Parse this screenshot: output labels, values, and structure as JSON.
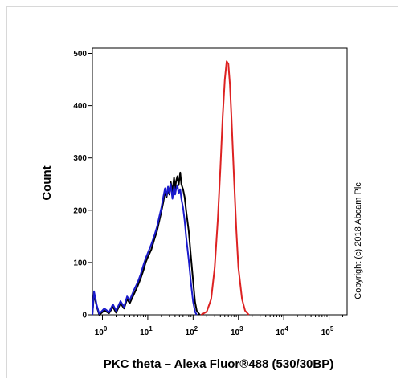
{
  "chart_data": {
    "type": "line",
    "title": "",
    "xlabel": "PKC theta – Alexa Fluor®488 (530/30BP)",
    "ylabel": "Count",
    "x_scale": "log",
    "xlim": [
      0.6,
      250000
    ],
    "ylim": [
      0,
      510
    ],
    "grid": false,
    "legend": "none",
    "x_ticks": [
      1,
      10,
      100,
      1000,
      10000,
      100000
    ],
    "x_tick_labels": [
      {
        "base": "10",
        "exp": "0"
      },
      {
        "base": "10",
        "exp": "1"
      },
      {
        "base": "10",
        "exp": "2"
      },
      {
        "base": "10",
        "exp": "3"
      },
      {
        "base": "10",
        "exp": "4"
      },
      {
        "base": "10",
        "exp": "5"
      }
    ],
    "y_ticks": [
      0,
      100,
      200,
      300,
      400,
      500
    ],
    "y_tick_labels": [
      "0",
      "100",
      "200",
      "300",
      "400",
      "500"
    ],
    "annotation": "Copyright (c) 2018 Abcam Plc",
    "series": [
      {
        "color": "#000000",
        "points": [
          [
            0.6,
            0
          ],
          [
            0.65,
            40
          ],
          [
            0.75,
            15
          ],
          [
            0.85,
            0
          ],
          [
            1.1,
            8
          ],
          [
            1.4,
            3
          ],
          [
            1.7,
            15
          ],
          [
            2.0,
            4
          ],
          [
            2.5,
            22
          ],
          [
            3.0,
            12
          ],
          [
            3.5,
            30
          ],
          [
            4.0,
            22
          ],
          [
            5.0,
            40
          ],
          [
            6.0,
            55
          ],
          [
            7.0,
            70
          ],
          [
            8.0,
            85
          ],
          [
            9.0,
            100
          ],
          [
            10,
            110
          ],
          [
            12,
            125
          ],
          [
            14,
            145
          ],
          [
            16,
            160
          ],
          [
            18,
            180
          ],
          [
            20,
            198
          ],
          [
            22,
            215
          ],
          [
            24,
            235
          ],
          [
            26,
            225
          ],
          [
            28,
            240
          ],
          [
            30,
            230
          ],
          [
            32,
            255
          ],
          [
            35,
            235
          ],
          [
            38,
            262
          ],
          [
            40,
            240
          ],
          [
            42,
            255
          ],
          [
            45,
            265
          ],
          [
            48,
            248
          ],
          [
            52,
            272
          ],
          [
            55,
            250
          ],
          [
            60,
            240
          ],
          [
            65,
            225
          ],
          [
            70,
            200
          ],
          [
            80,
            160
          ],
          [
            90,
            110
          ],
          [
            100,
            65
          ],
          [
            110,
            25
          ],
          [
            120,
            8
          ],
          [
            140,
            0
          ]
        ]
      },
      {
        "color": "#1a1acc",
        "points": [
          [
            0.6,
            0
          ],
          [
            0.65,
            45
          ],
          [
            0.75,
            18
          ],
          [
            0.85,
            2
          ],
          [
            1.1,
            12
          ],
          [
            1.4,
            5
          ],
          [
            1.7,
            20
          ],
          [
            2.0,
            8
          ],
          [
            2.5,
            26
          ],
          [
            3.0,
            15
          ],
          [
            3.5,
            35
          ],
          [
            4.0,
            28
          ],
          [
            5.0,
            48
          ],
          [
            6.0,
            62
          ],
          [
            7.0,
            78
          ],
          [
            8.0,
            95
          ],
          [
            9.0,
            108
          ],
          [
            10,
            118
          ],
          [
            12,
            135
          ],
          [
            14,
            152
          ],
          [
            16,
            168
          ],
          [
            18,
            188
          ],
          [
            20,
            205
          ],
          [
            22,
            225
          ],
          [
            24,
            242
          ],
          [
            26,
            228
          ],
          [
            28,
            245
          ],
          [
            30,
            232
          ],
          [
            32,
            250
          ],
          [
            35,
            222
          ],
          [
            38,
            245
          ],
          [
            40,
            230
          ],
          [
            42,
            240
          ],
          [
            45,
            248
          ],
          [
            48,
            232
          ],
          [
            52,
            240
          ],
          [
            55,
            222
          ],
          [
            60,
            205
          ],
          [
            65,
            180
          ],
          [
            70,
            150
          ],
          [
            80,
            105
          ],
          [
            90,
            60
          ],
          [
            100,
            25
          ],
          [
            110,
            6
          ],
          [
            120,
            0
          ]
        ]
      },
      {
        "color": "#dd2222",
        "points": [
          [
            150,
            0
          ],
          [
            200,
            6
          ],
          [
            250,
            30
          ],
          [
            300,
            90
          ],
          [
            350,
            180
          ],
          [
            400,
            280
          ],
          [
            450,
            380
          ],
          [
            500,
            450
          ],
          [
            550,
            485
          ],
          [
            600,
            480
          ],
          [
            650,
            440
          ],
          [
            700,
            380
          ],
          [
            800,
            260
          ],
          [
            900,
            160
          ],
          [
            1000,
            90
          ],
          [
            1200,
            30
          ],
          [
            1400,
            8
          ],
          [
            1700,
            0
          ]
        ]
      }
    ]
  }
}
